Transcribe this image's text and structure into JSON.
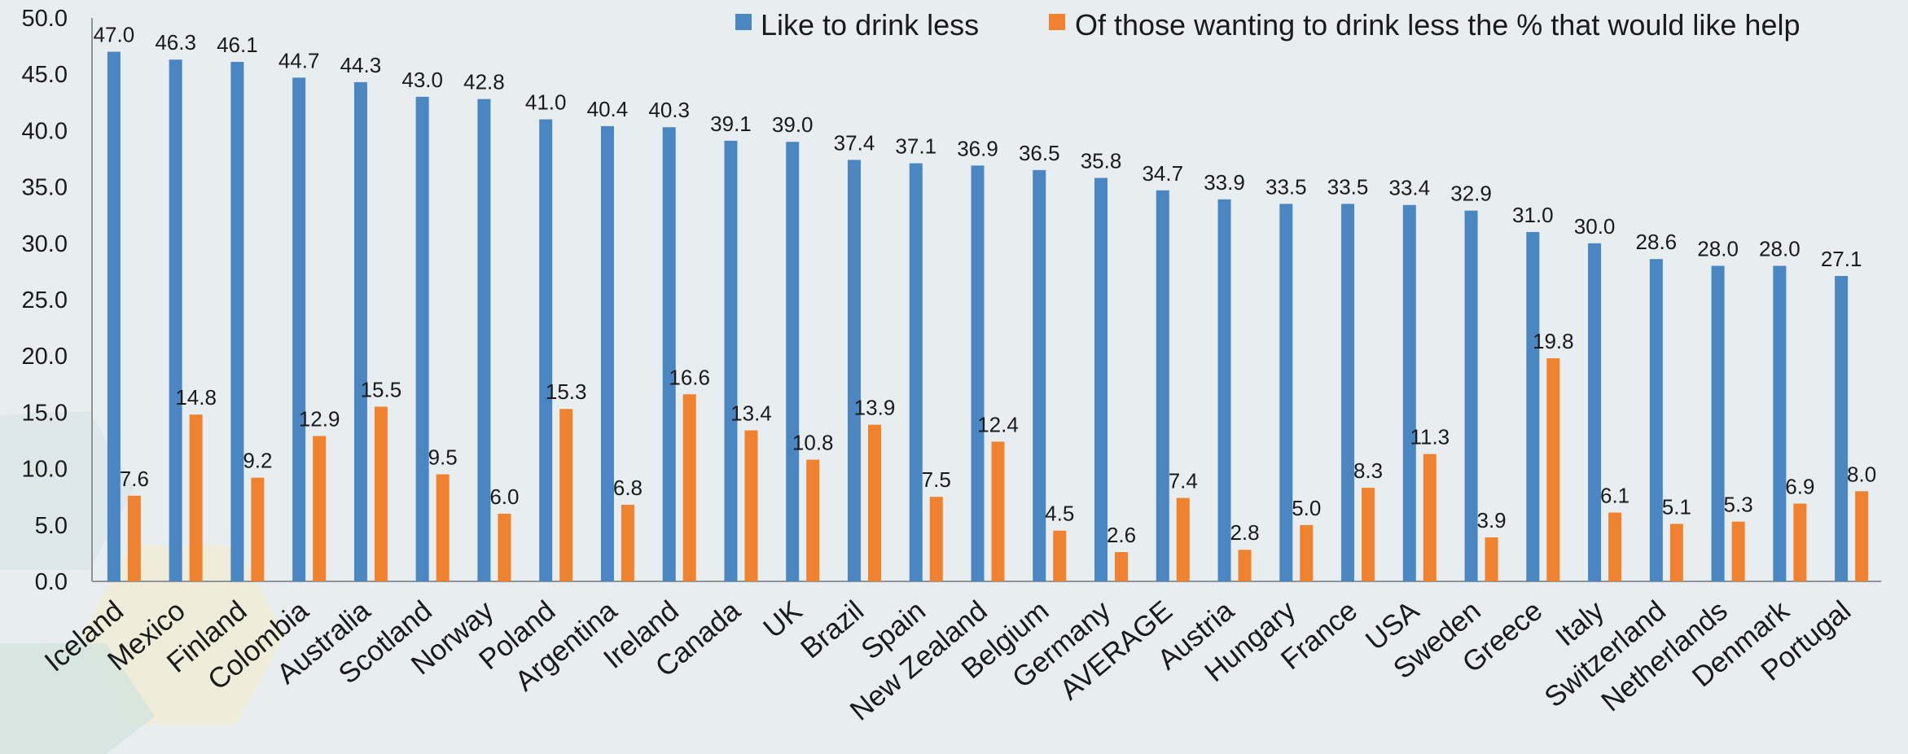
{
  "chart_data": {
    "type": "bar",
    "categories": [
      "Iceland",
      "Mexico",
      "Finland",
      "Colombia",
      "Australia",
      "Scotland",
      "Norway",
      "Poland",
      "Argentina",
      "Ireland",
      "Canada",
      "UK",
      "Brazil",
      "Spain",
      "New Zealand",
      "Belgium",
      "Germany",
      "AVERAGE",
      "Austria",
      "Hungary",
      "France",
      "USA",
      "Sweden",
      "Greece",
      "Italy",
      "Switzerland",
      "Netherlands",
      "Denmark",
      "Portugal"
    ],
    "series": [
      {
        "name": "Like to drink less",
        "color": "#4a86c2",
        "values": [
          47.0,
          46.3,
          46.1,
          44.7,
          44.3,
          43.0,
          42.8,
          41.0,
          40.4,
          40.3,
          39.1,
          39.0,
          37.4,
          37.1,
          36.9,
          36.5,
          35.8,
          34.7,
          33.9,
          33.5,
          33.5,
          33.4,
          32.9,
          31.0,
          30.0,
          28.6,
          28.0,
          28.0,
          27.1
        ]
      },
      {
        "name": "Of those wanting to drink less the % that would like help",
        "color": "#f0812f",
        "values": [
          7.6,
          14.8,
          9.2,
          12.9,
          15.5,
          9.5,
          6.0,
          15.3,
          6.8,
          16.6,
          13.4,
          10.8,
          13.9,
          7.5,
          12.4,
          4.5,
          2.6,
          7.4,
          2.8,
          5.0,
          8.3,
          11.3,
          3.9,
          19.8,
          6.1,
          5.1,
          5.3,
          6.9,
          8.0
        ]
      }
    ],
    "ylim": [
      0,
      50
    ],
    "yticks": [
      0,
      5,
      10,
      15,
      20,
      25,
      30,
      35,
      40,
      45,
      50
    ],
    "legend_position": "top-right",
    "grid": false
  }
}
